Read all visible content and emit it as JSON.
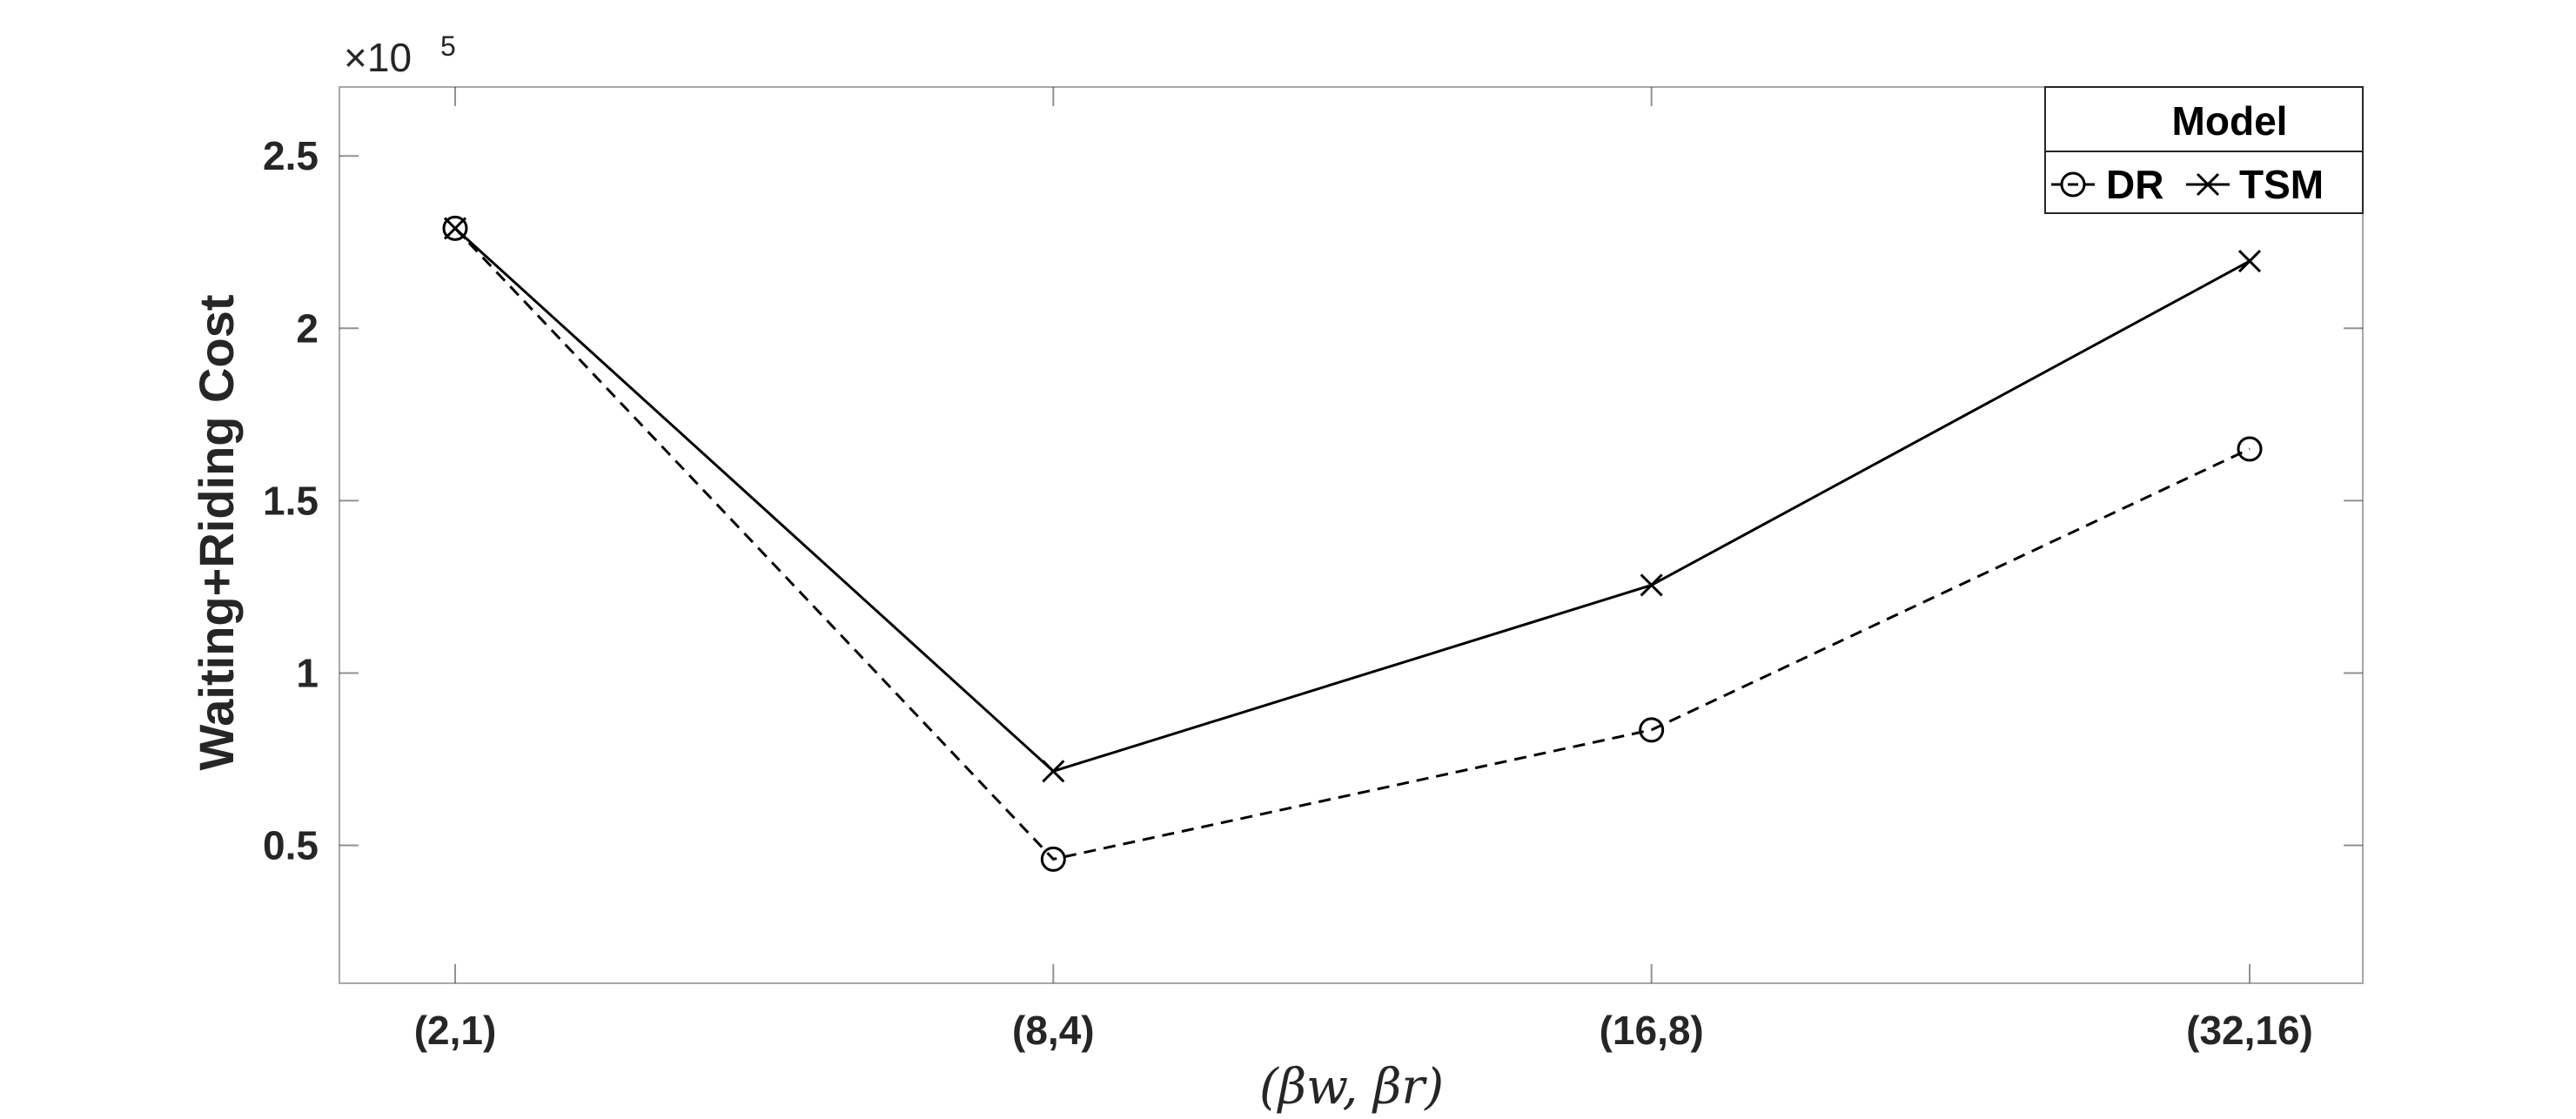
{
  "chart_data": {
    "type": "line",
    "categories": [
      "(2,1)",
      "(8,4)",
      "(16,8)",
      "(32,16)"
    ],
    "series": [
      {
        "name": "DR",
        "values": [
          229000,
          46000,
          83500,
          165000
        ],
        "line": "dashed",
        "marker": "circle",
        "color": "#000000"
      },
      {
        "name": "TSM",
        "values": [
          229000,
          71500,
          125500,
          219500
        ],
        "line": "solid",
        "marker": "x",
        "color": "#000000"
      }
    ],
    "ylabel": "Waiting+Riding Cost",
    "xlabel": "(βw, βr)",
    "ylim": [
      10000,
      270000
    ],
    "yticks": [
      50000,
      100000,
      150000,
      200000,
      250000
    ],
    "ytick_labels": [
      "0.5",
      "1",
      "1.5",
      "2",
      "2.5"
    ],
    "y_exponent": {
      "prefix": "×10",
      "power": "5"
    },
    "grid": false,
    "legend": {
      "title": "Model",
      "placement": "top-right",
      "orientation": "horizontal"
    }
  }
}
